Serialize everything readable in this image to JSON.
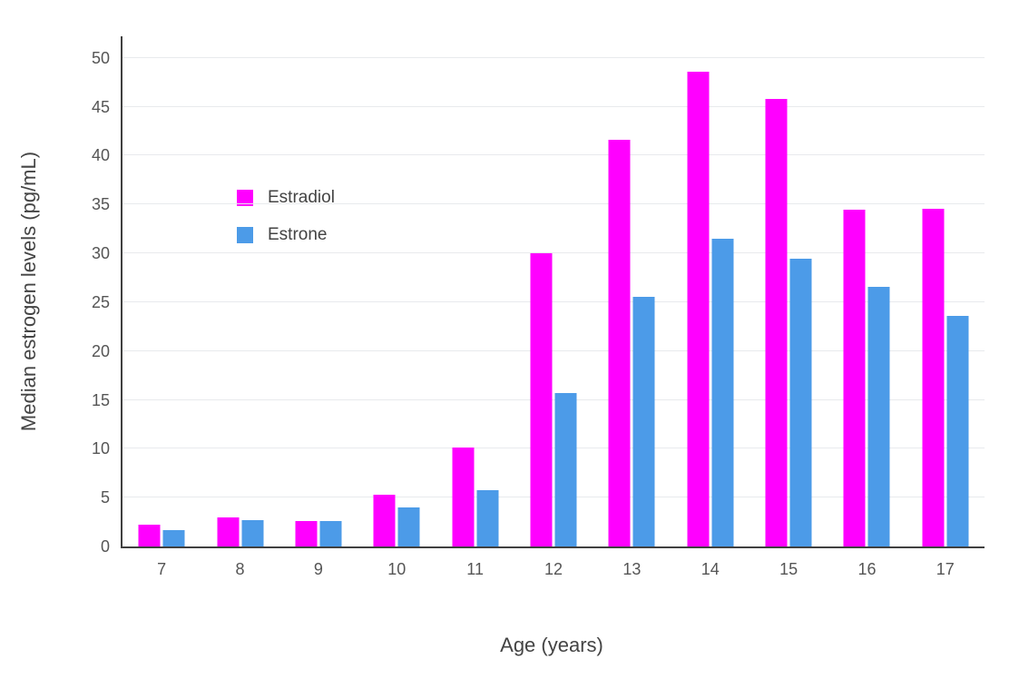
{
  "chart_data": {
    "type": "bar",
    "title": "",
    "xlabel": "Age (years)",
    "ylabel": "Median estrogen levels (pg/mL)",
    "categories": [
      "7",
      "8",
      "9",
      "10",
      "11",
      "12",
      "13",
      "14",
      "15",
      "16",
      "17"
    ],
    "series": [
      {
        "name": "Estradiol",
        "color": "#ff00ff",
        "values": [
          2.2,
          3.0,
          2.6,
          5.3,
          10.1,
          30.0,
          41.6,
          48.6,
          45.8,
          34.5,
          34.6
        ]
      },
      {
        "name": "Estrone",
        "color": "#4c9be8",
        "values": [
          1.7,
          2.7,
          2.6,
          4.0,
          5.8,
          15.7,
          25.5,
          31.5,
          29.4,
          26.6,
          23.6
        ]
      }
    ],
    "yticks": [
      0,
      5,
      10,
      15,
      20,
      25,
      30,
      35,
      40,
      45,
      50
    ],
    "ylim": [
      0,
      52.2
    ],
    "grid": true,
    "legend_position": "inside-top-left",
    "colors": {
      "grid": "#e8eaed",
      "axis": "#404040",
      "tick_text": "#555555",
      "title_text": "#444444",
      "background": "#ffffff"
    }
  }
}
